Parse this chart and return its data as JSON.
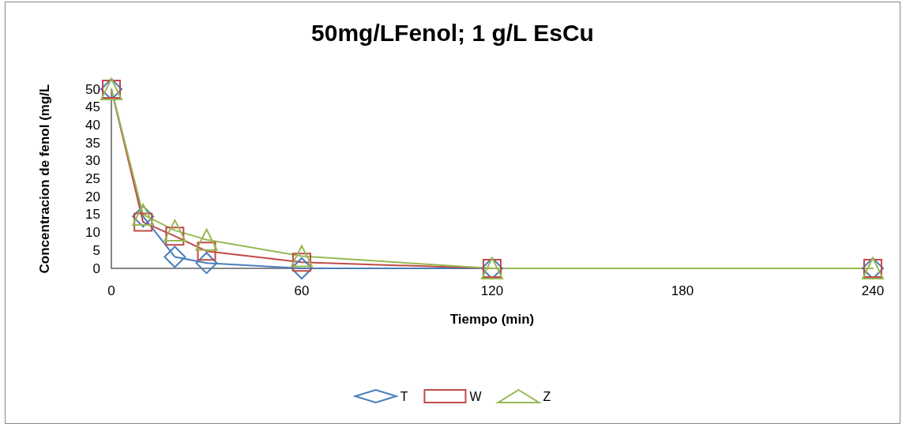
{
  "chart_data": {
    "type": "line",
    "title": "50mg/LFenol; 1 g/L EsCu",
    "xlabel": "Tiempo (min)",
    "ylabel": "Concentracion de fenol (mg/L",
    "x": [
      0,
      10,
      20,
      30,
      60,
      120,
      240
    ],
    "series": [
      {
        "name": "T",
        "color": "#4a7ebb",
        "marker": "diamond",
        "values": [
          50,
          14.5,
          3.2,
          1.5,
          0,
          0,
          0
        ]
      },
      {
        "name": "W",
        "color": "#be4b48",
        "marker": "square",
        "values": [
          50,
          12.9,
          9,
          4.8,
          1.7,
          0,
          0
        ]
      },
      {
        "name": "Z",
        "color": "#98b954",
        "marker": "triangle",
        "values": [
          50,
          15,
          10.6,
          8,
          3.4,
          0,
          0
        ]
      }
    ],
    "xlim": [
      0,
      240
    ],
    "xticks": [
      0,
      60,
      120,
      180,
      240
    ],
    "ylim": [
      0,
      50
    ],
    "yticks": [
      0,
      5,
      10,
      15,
      20,
      25,
      30,
      35,
      40,
      45,
      50
    ],
    "grid": false,
    "legend": "bottom",
    "line_style": "solid"
  }
}
